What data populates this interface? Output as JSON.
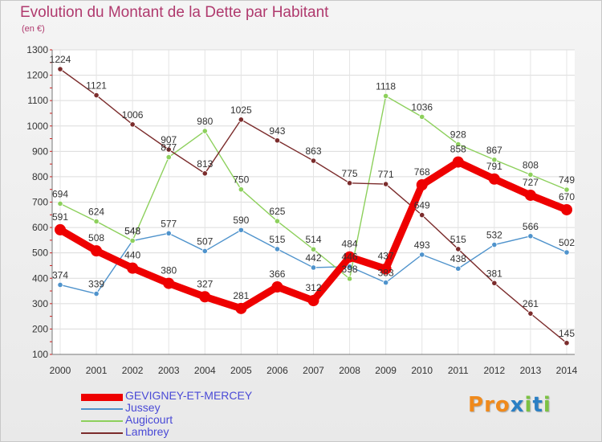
{
  "header": {
    "title": "Evolution du Montant de la Dette par Habitant",
    "unit": "(en €)"
  },
  "brand": {
    "letters": [
      "P",
      "r",
      "o",
      "x",
      "i",
      "t",
      "i"
    ]
  },
  "colors": {
    "title": "#b03a6e",
    "axis_text": "#333333",
    "brand": [
      "#f08a1c",
      "#f08a1c",
      "#f08a1c",
      "#2a7fc4",
      "#7cc243",
      "#2a7fc4",
      "#7cc243"
    ]
  },
  "chart_data": {
    "type": "line",
    "title": "Evolution du Montant de la Dette par Habitant",
    "ylabel": "(en €)",
    "xlabel": "",
    "x": [
      "2000",
      "2001",
      "2002",
      "2003",
      "2004",
      "2005",
      "2006",
      "2007",
      "2008",
      "2009",
      "2010",
      "2011",
      "2012",
      "2013",
      "2014"
    ],
    "ylim": [
      100,
      1300
    ],
    "yticks": [
      100,
      200,
      300,
      400,
      500,
      600,
      700,
      800,
      900,
      1000,
      1100,
      1200,
      1300
    ],
    "grid": true,
    "legend_position": "bottom-left",
    "series": [
      {
        "name": "GEVIGNEY-ET-MERCEY",
        "color": "#ee0000",
        "emphasis": true,
        "values": [
          591,
          508,
          440,
          380,
          327,
          281,
          366,
          312,
          484,
          437,
          768,
          858,
          791,
          727,
          670
        ]
      },
      {
        "name": "Jussey",
        "color": "#4f93cc",
        "values": [
          374,
          339,
          548,
          577,
          507,
          590,
          515,
          442,
          446,
          383,
          493,
          438,
          532,
          566,
          502
        ]
      },
      {
        "name": "Augicourt",
        "color": "#8dd05c",
        "values": [
          694,
          624,
          548,
          877,
          980,
          750,
          625,
          514,
          398,
          1118,
          1036,
          928,
          867,
          808,
          749
        ]
      },
      {
        "name": "Lambrey",
        "color": "#7b2c2c",
        "values": [
          1224,
          1121,
          1006,
          907,
          813,
          1025,
          943,
          863,
          775,
          771,
          649,
          515,
          381,
          261,
          145
        ]
      }
    ]
  }
}
